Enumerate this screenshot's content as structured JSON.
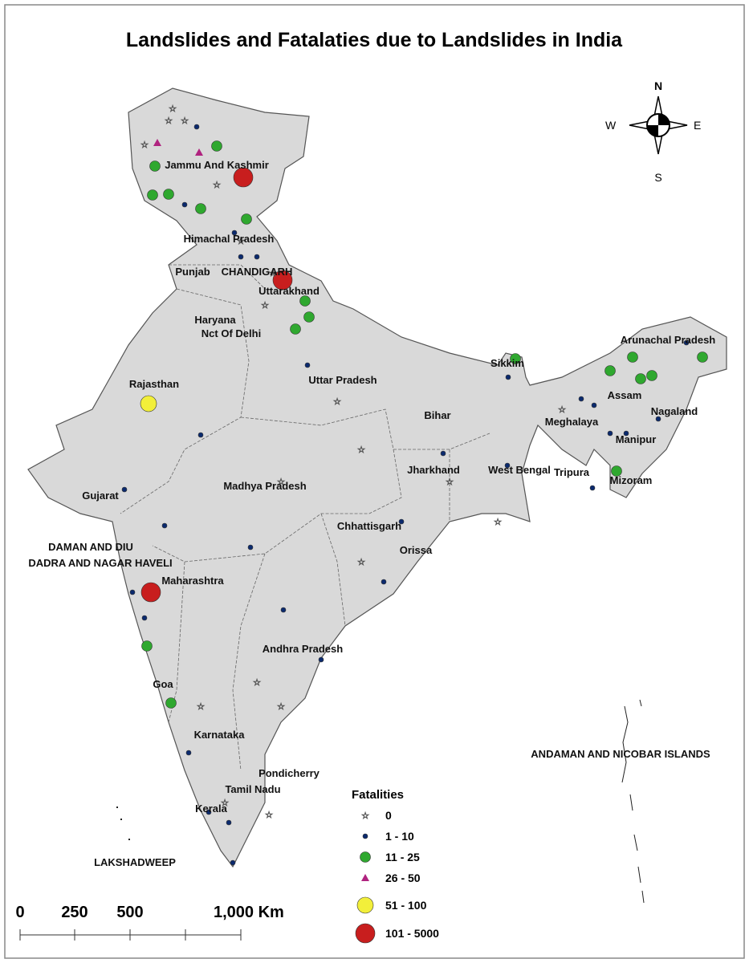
{
  "title": "Landslides and Fatalaties due to Landslides in India",
  "compass": {
    "north": "N",
    "south": "S",
    "east": "E",
    "west": "W"
  },
  "labels": [
    "Jammu And Kashmir",
    "Himachal Pradesh",
    "Punjab",
    "CHANDIGARH",
    "Uttarakhand",
    "Haryana",
    "Nct Of Delhi",
    "Rajasthan",
    "Uttar Pradesh",
    "Sikkim",
    "Arunachal Pradesh",
    "Assam",
    "Nagaland",
    "Meghalaya",
    "Manipur",
    "Bihar",
    "Jharkhand",
    "West Bengal",
    "Tripura",
    "Mizoram",
    "Gujarat",
    "Madhya Pradesh",
    "Chhattisgarh",
    "Orissa",
    "DAMAN AND DIU",
    "DADRA AND NAGAR HAVELI",
    "Maharashtra",
    "Andhra Pradesh",
    "Goa",
    "Karnataka",
    "ANDAMAN AND NICOBAR ISLANDS",
    "Pondicherry",
    "Tamil Nadu",
    "Kerala",
    "LAKSHADWEEP"
  ],
  "legend": {
    "title": "Fatalities",
    "items": [
      {
        "label": "0",
        "color": "#ffffff"
      },
      {
        "label": "1 - 10",
        "color": "#0b2a6e"
      },
      {
        "label": "11 - 25",
        "color": "#2fa82f"
      },
      {
        "label": "26 - 50",
        "color": "#b0237f"
      },
      {
        "label": "51 - 100",
        "color": "#f2ef3a"
      },
      {
        "label": "101 - 5000",
        "color": "#c81e1e"
      }
    ]
  },
  "scale": {
    "ticks": [
      "0",
      "250",
      "500",
      "1,000 Km"
    ]
  }
}
